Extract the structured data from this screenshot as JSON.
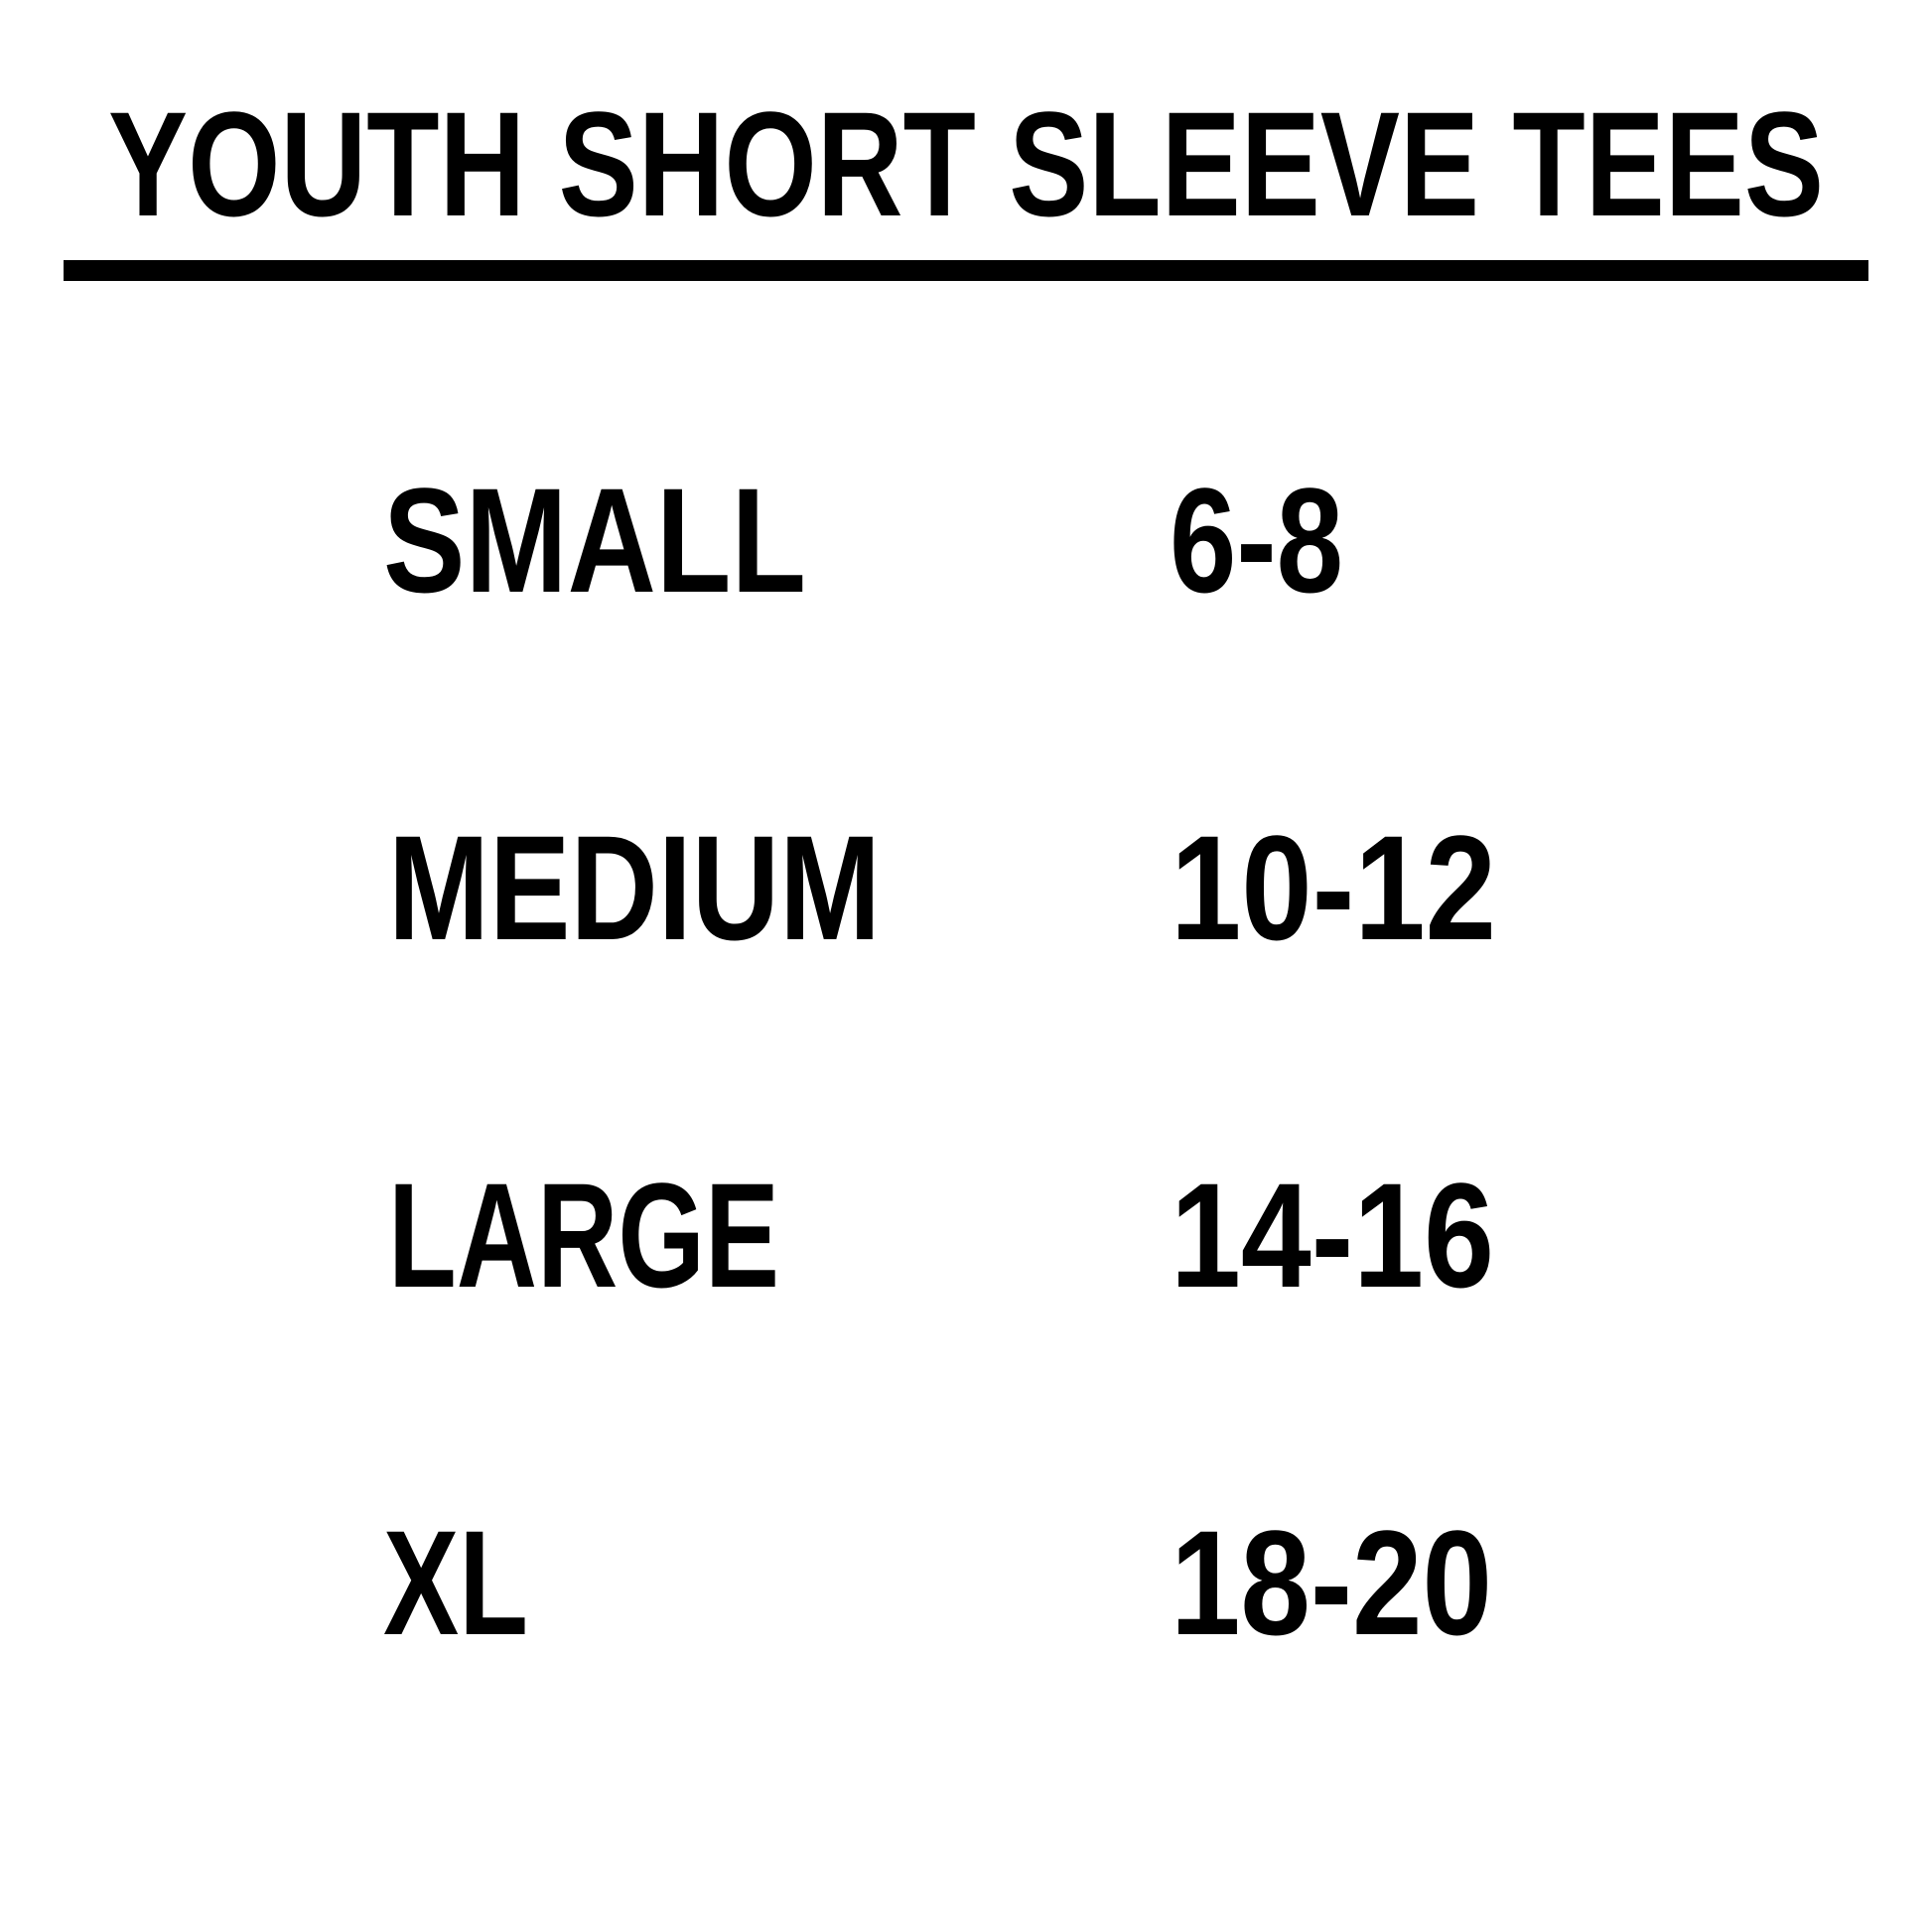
{
  "title": "YOUTH SHORT SLEEVE TEES",
  "rows": [
    {
      "size": "SMALL",
      "ages": "6-8"
    },
    {
      "size": "MEDIUM",
      "ages": "10-12"
    },
    {
      "size": "LARGE",
      "ages": "14-16"
    },
    {
      "size": "XL",
      "ages": "18-20"
    }
  ],
  "colors": {
    "text": "#000000",
    "background": "#ffffff"
  }
}
